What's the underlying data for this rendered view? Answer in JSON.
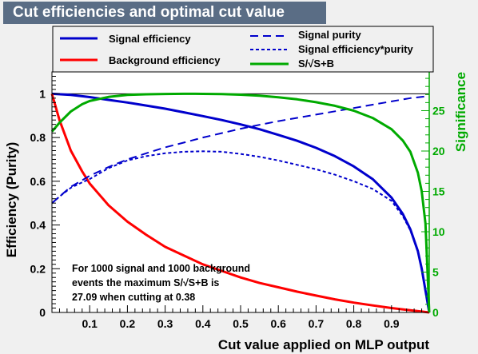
{
  "chart_data": {
    "type": "line",
    "title": "Cut efficiencies and optimal cut value",
    "xlabel": "Cut value applied on MLP output",
    "ylabel": "Efficiency (Purity)",
    "y2label": "Significance",
    "xlim": [
      0,
      1
    ],
    "ylim": [
      0,
      1.1
    ],
    "y2lim": [
      0,
      29.8
    ],
    "xticks": [
      "0.1",
      "0.2",
      "0.3",
      "0.4",
      "0.5",
      "0.6",
      "0.7",
      "0.8",
      "0.9"
    ],
    "yticks": [
      "0",
      "0.2",
      "0.4",
      "0.6",
      "0.8",
      "1"
    ],
    "y2ticks": [
      "0",
      "5",
      "10",
      "15",
      "20",
      "25"
    ],
    "series": [
      {
        "name": "Signal efficiency",
        "color": "#0000cc",
        "style": "solid",
        "axis": "left",
        "x": [
          0,
          0.05,
          0.1,
          0.15,
          0.2,
          0.25,
          0.3,
          0.35,
          0.4,
          0.45,
          0.5,
          0.55,
          0.6,
          0.65,
          0.7,
          0.75,
          0.8,
          0.85,
          0.9,
          0.93,
          0.95,
          0.97,
          0.98,
          0.99,
          1.0
        ],
        "y": [
          1.0,
          0.995,
          0.985,
          0.972,
          0.96,
          0.946,
          0.932,
          0.915,
          0.898,
          0.88,
          0.86,
          0.838,
          0.812,
          0.785,
          0.753,
          0.715,
          0.668,
          0.61,
          0.525,
          0.45,
          0.38,
          0.28,
          0.2,
          0.1,
          0.0
        ]
      },
      {
        "name": "Background efficiency",
        "color": "#ff0000",
        "style": "solid",
        "axis": "left",
        "x": [
          0,
          0.02,
          0.05,
          0.08,
          0.1,
          0.15,
          0.2,
          0.25,
          0.3,
          0.35,
          0.4,
          0.45,
          0.5,
          0.55,
          0.6,
          0.65,
          0.7,
          0.75,
          0.8,
          0.85,
          0.9,
          0.95,
          0.98,
          1.0
        ],
        "y": [
          1.0,
          0.88,
          0.74,
          0.645,
          0.59,
          0.49,
          0.415,
          0.355,
          0.3,
          0.26,
          0.22,
          0.19,
          0.16,
          0.135,
          0.115,
          0.095,
          0.077,
          0.06,
          0.045,
          0.032,
          0.02,
          0.01,
          0.004,
          0.0
        ]
      },
      {
        "name": "Signal purity",
        "color": "#0000cc",
        "style": "dashed",
        "axis": "left",
        "x": [
          0,
          0.02,
          0.05,
          0.08,
          0.1,
          0.15,
          0.2,
          0.25,
          0.3,
          0.35,
          0.4,
          0.45,
          0.5,
          0.55,
          0.6,
          0.65,
          0.7,
          0.75,
          0.8,
          0.85,
          0.9,
          0.95,
          1.0
        ],
        "y": [
          0.5,
          0.53,
          0.575,
          0.605,
          0.625,
          0.665,
          0.7,
          0.728,
          0.755,
          0.777,
          0.8,
          0.82,
          0.84,
          0.858,
          0.875,
          0.89,
          0.905,
          0.92,
          0.935,
          0.95,
          0.965,
          0.98,
          0.99
        ]
      },
      {
        "name": "Signal efficiency*purity",
        "color": "#0000cc",
        "style": "dotted",
        "axis": "left",
        "x": [
          0,
          0.02,
          0.05,
          0.08,
          0.1,
          0.15,
          0.2,
          0.25,
          0.3,
          0.35,
          0.4,
          0.45,
          0.5,
          0.55,
          0.6,
          0.65,
          0.7,
          0.75,
          0.8,
          0.85,
          0.9,
          0.93,
          0.95,
          0.97,
          0.98,
          0.99,
          1.0
        ],
        "y": [
          0.5,
          0.53,
          0.57,
          0.595,
          0.61,
          0.66,
          0.695,
          0.715,
          0.728,
          0.735,
          0.737,
          0.735,
          0.725,
          0.712,
          0.695,
          0.675,
          0.655,
          0.63,
          0.6,
          0.565,
          0.51,
          0.44,
          0.375,
          0.28,
          0.2,
          0.1,
          0.0
        ]
      },
      {
        "name": "S/√S+B",
        "color": "#00aa00",
        "style": "solid",
        "axis": "right",
        "x": [
          0,
          0.02,
          0.05,
          0.08,
          0.1,
          0.15,
          0.2,
          0.25,
          0.3,
          0.35,
          0.38,
          0.4,
          0.45,
          0.5,
          0.55,
          0.6,
          0.65,
          0.7,
          0.75,
          0.8,
          0.85,
          0.9,
          0.93,
          0.95,
          0.97,
          0.98,
          0.99,
          1.0
        ],
        "y": [
          22.4,
          23.5,
          24.9,
          25.8,
          26.2,
          26.7,
          26.95,
          27.03,
          27.07,
          27.09,
          27.09,
          27.08,
          27.05,
          26.98,
          26.85,
          26.65,
          26.4,
          26.05,
          25.6,
          25.0,
          24.1,
          22.7,
          21.3,
          19.9,
          17.3,
          15.0,
          11.0,
          0.0
        ]
      }
    ],
    "annotation": [
      "For 1000 signal and 1000 background",
      "events the maximum S/√S+B is",
      "27.09 when cutting at  0.38"
    ]
  }
}
